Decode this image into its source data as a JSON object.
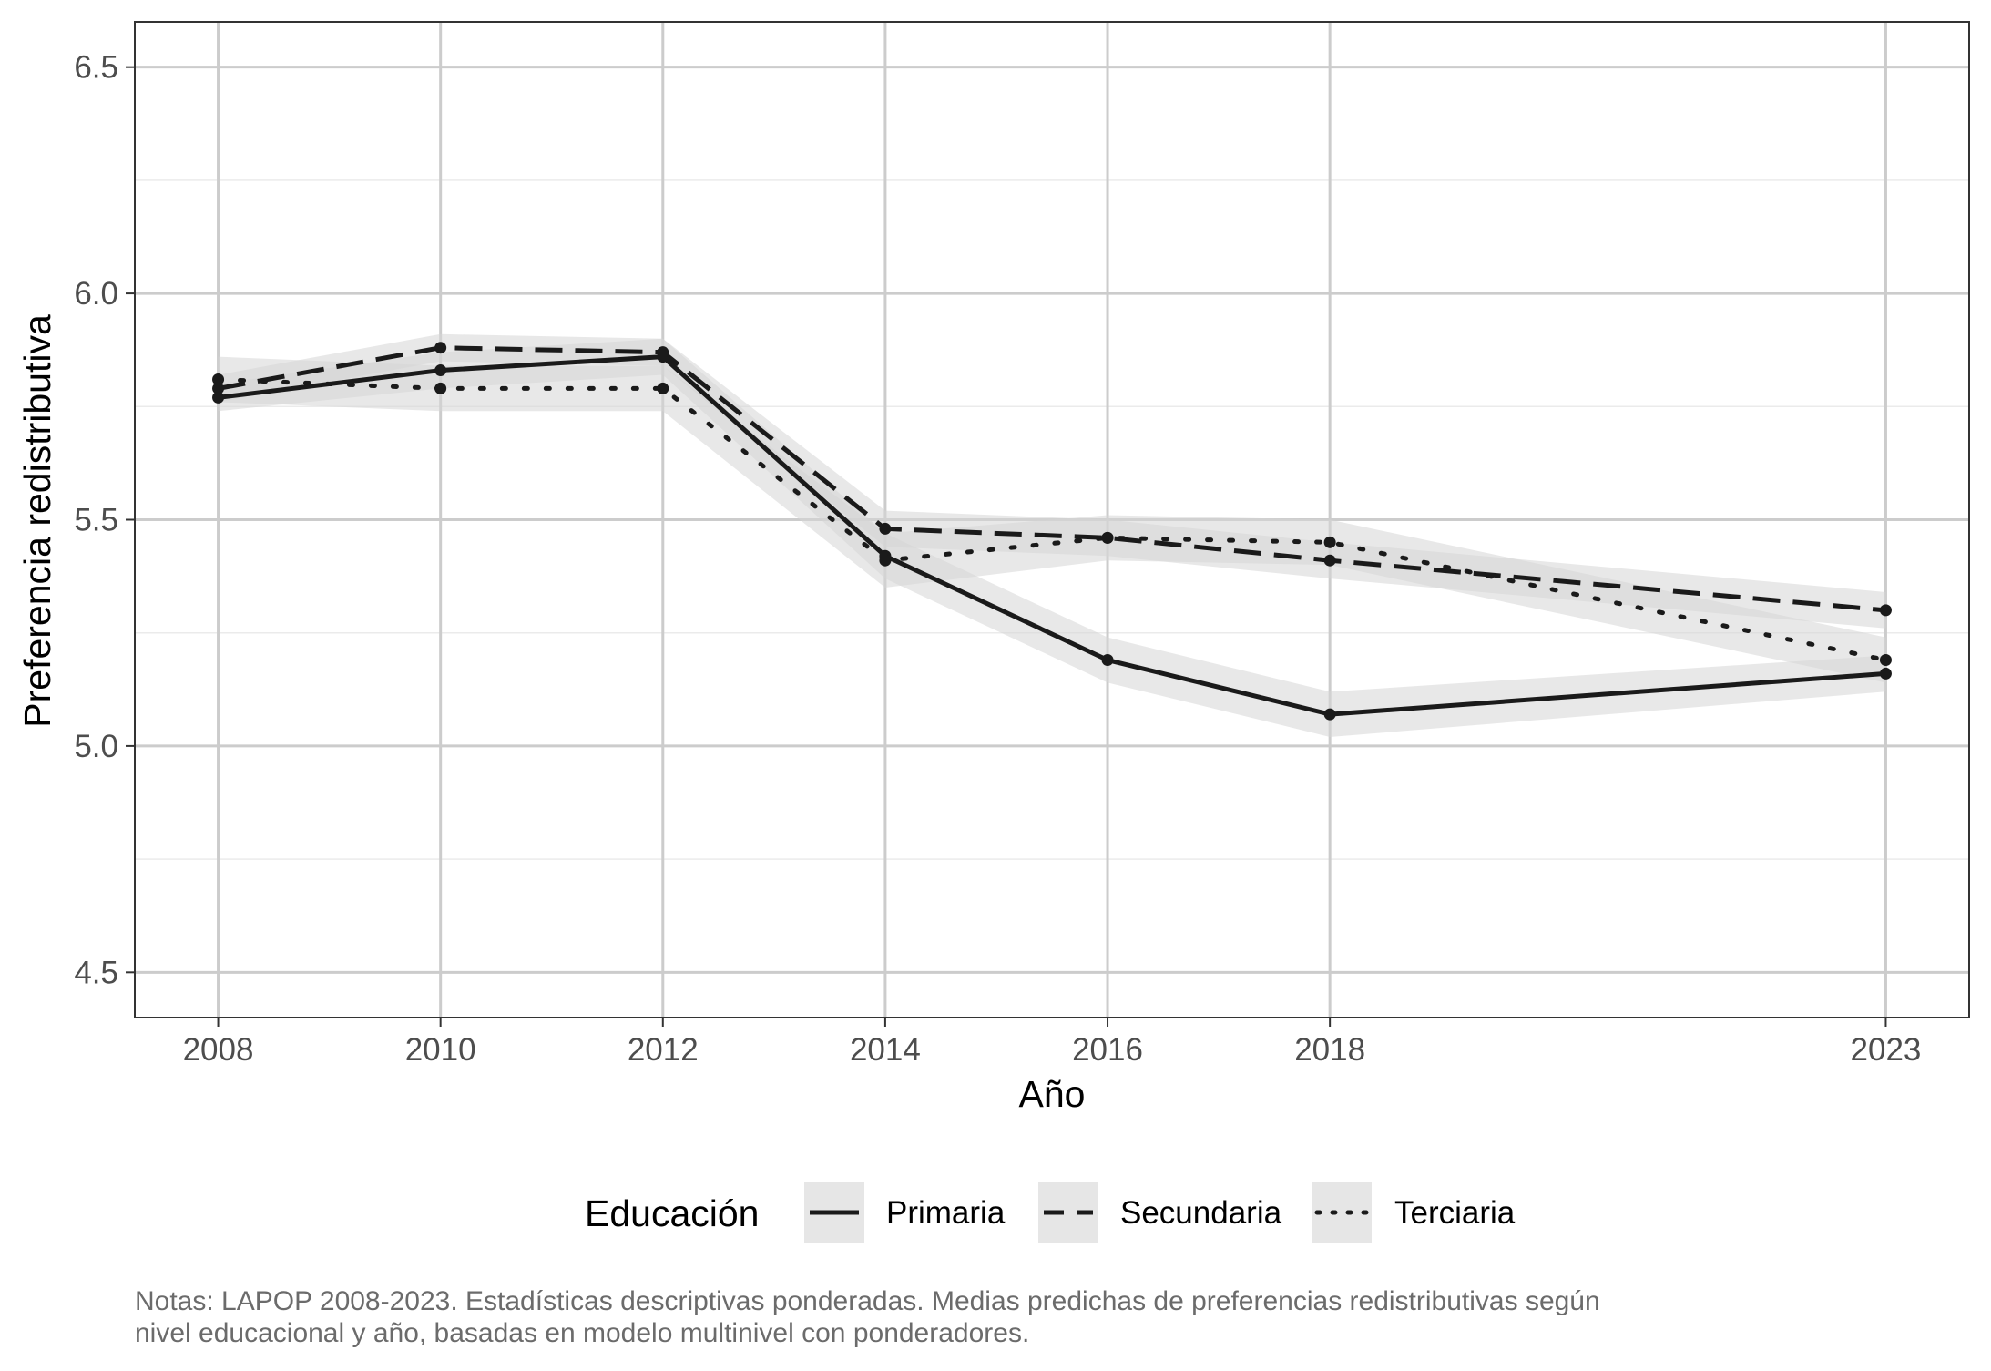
{
  "chart_data": {
    "type": "line",
    "xlabel": "Año",
    "ylabel": "Preferencia redistributiva",
    "x": [
      2008,
      2010,
      2012,
      2014,
      2016,
      2018,
      2023
    ],
    "x_tick_labels": [
      "2008",
      "2010",
      "2012",
      "2014",
      "2016",
      "2018",
      "2023"
    ],
    "y_ticks": [
      4.5,
      5.0,
      5.5,
      6.0,
      6.5
    ],
    "y_tick_labels": [
      "4.5",
      "5.0",
      "5.5",
      "6.0",
      "6.5"
    ],
    "ylim": [
      4.4,
      6.6
    ],
    "xlim": [
      2007.25,
      2023.75
    ],
    "grid": true,
    "legend": {
      "title": "Educación",
      "position": "bottom"
    },
    "series": [
      {
        "name": "Primaria",
        "line_style": "solid",
        "values": [
          5.77,
          5.83,
          5.86,
          5.42,
          5.19,
          5.07,
          5.16
        ],
        "ci_lower": [
          5.74,
          5.79,
          5.82,
          5.37,
          5.14,
          5.02,
          5.12
        ],
        "ci_upper": [
          5.8,
          5.87,
          5.9,
          5.47,
          5.24,
          5.12,
          5.2
        ]
      },
      {
        "name": "Secundaria",
        "line_style": "dashed",
        "values": [
          5.79,
          5.88,
          5.87,
          5.48,
          5.46,
          5.41,
          5.3
        ],
        "ci_lower": [
          5.76,
          5.85,
          5.84,
          5.44,
          5.42,
          5.37,
          5.26
        ],
        "ci_upper": [
          5.82,
          5.91,
          5.9,
          5.52,
          5.5,
          5.45,
          5.34
        ]
      },
      {
        "name": "Terciaria",
        "line_style": "dotted",
        "values": [
          5.81,
          5.79,
          5.79,
          5.41,
          5.46,
          5.45,
          5.19
        ],
        "ci_lower": [
          5.76,
          5.74,
          5.74,
          5.35,
          5.41,
          5.4,
          5.14
        ],
        "ci_upper": [
          5.86,
          5.84,
          5.84,
          5.47,
          5.51,
          5.5,
          5.24
        ]
      }
    ],
    "notes": [
      "Notas: LAPOP 2008-2023. Estadísticas descriptivas ponderadas. Medias predichas de preferencias redistributivas según",
      "nivel educacional y año, basadas en modelo multinivel con ponderadores."
    ]
  },
  "colors": {
    "line": "#1a1a1a",
    "ribbon": "#d6d6d6",
    "grid_major": "#cccccc",
    "grid_minor": "#ebebeb",
    "panel_border": "#333333",
    "legend_key_bg": "#e6e6e6",
    "note": "#6b6b6b"
  }
}
